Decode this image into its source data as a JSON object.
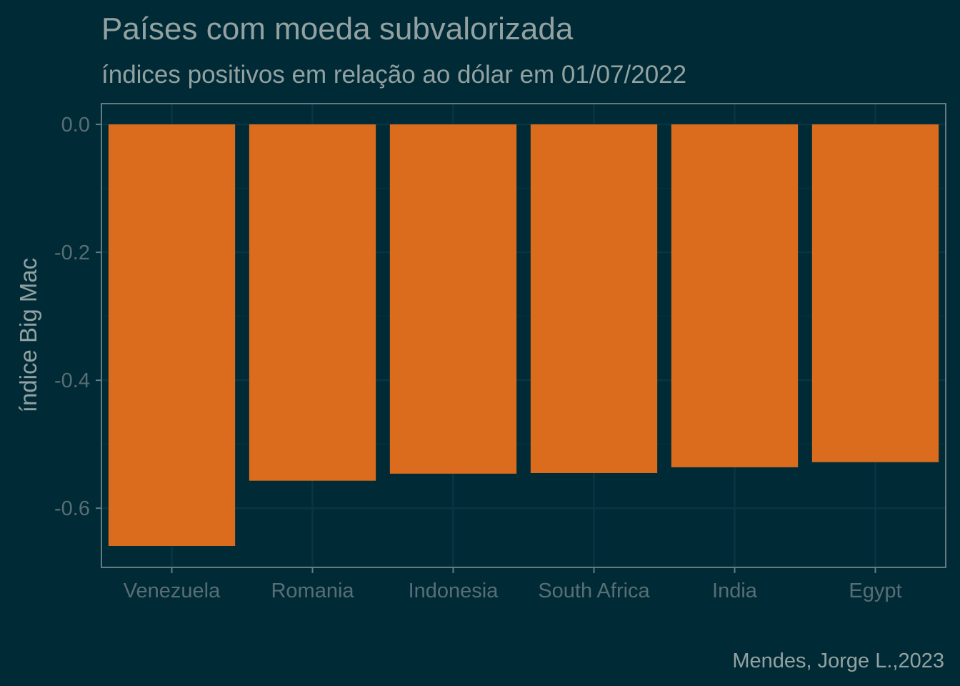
{
  "colors": {
    "background": "#002b36",
    "bar": "#db6c1e",
    "title": "#93a1a1",
    "subtitle": "#93a1a1",
    "axis_title": "#93a1a1",
    "tick_label": "#586e75",
    "caption": "#93a1a1",
    "panel_border": "#657b83",
    "grid_major": "#073642",
    "grid_minor": "#05313c"
  },
  "chart_data": {
    "type": "bar",
    "title": "Países com moeda subvalorizada",
    "subtitle": "índices positivos em relação ao dólar em 01/07/2022",
    "xlabel": "",
    "ylabel": "índice Big Mac",
    "caption": "Mendes, Jorge L.,2023",
    "categories": [
      "Venezuela",
      "Romania",
      "Indonesia",
      "South Africa",
      "India",
      "Egypt"
    ],
    "values": [
      -0.659,
      -0.557,
      -0.546,
      -0.545,
      -0.536,
      -0.528
    ],
    "ylim": [
      -0.6925,
      0.0325
    ],
    "yticks": [
      0.0,
      -0.2,
      -0.4,
      -0.6
    ],
    "ytick_labels": [
      "0.0",
      "-0.2",
      "-0.4",
      "-0.6"
    ],
    "grid": true,
    "legend": "none"
  }
}
